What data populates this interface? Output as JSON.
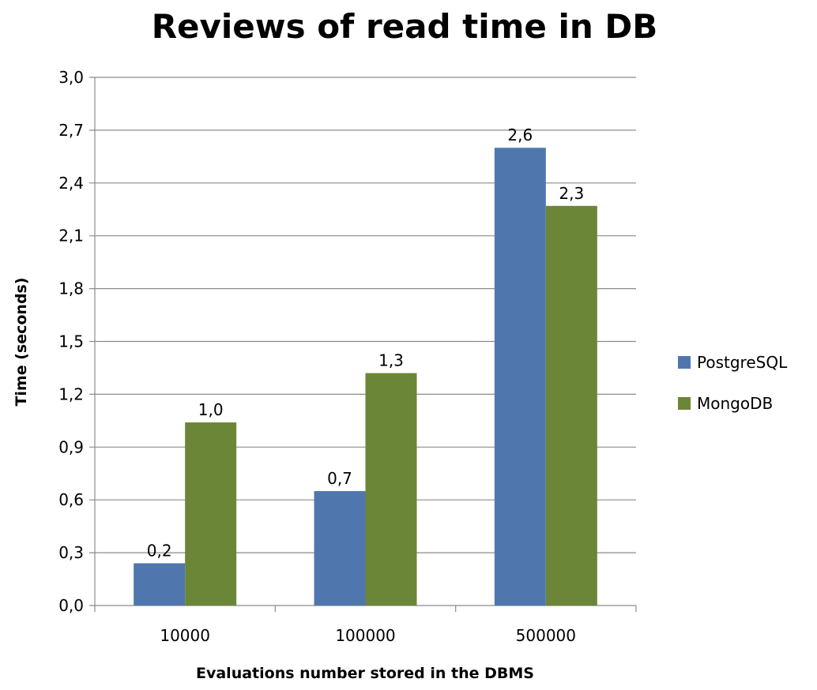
{
  "chart_data": {
    "type": "bar",
    "title": "Reviews of read time in DB",
    "xlabel": "Evaluations number stored in the DBMS",
    "ylabel": "Time (seconds)",
    "categories": [
      "10000",
      "100000",
      "500000"
    ],
    "series": [
      {
        "name": "PostgreSQL",
        "values": [
          0.24,
          0.65,
          2.6
        ],
        "labels": [
          "0,2",
          "0,7",
          "2,6"
        ],
        "color": "#4F77AE"
      },
      {
        "name": "MongoDB",
        "values": [
          1.04,
          1.32,
          2.27
        ],
        "labels": [
          "1,0",
          "1,3",
          "2,3"
        ],
        "color": "#6B8636"
      }
    ],
    "ylim": [
      0,
      3.0
    ],
    "yticks": [
      "0,0",
      "0,3",
      "0,6",
      "0,9",
      "1,2",
      "1,5",
      "1,8",
      "2,1",
      "2,4",
      "2,7",
      "3,0"
    ],
    "grid": true,
    "legend_position": "right"
  }
}
